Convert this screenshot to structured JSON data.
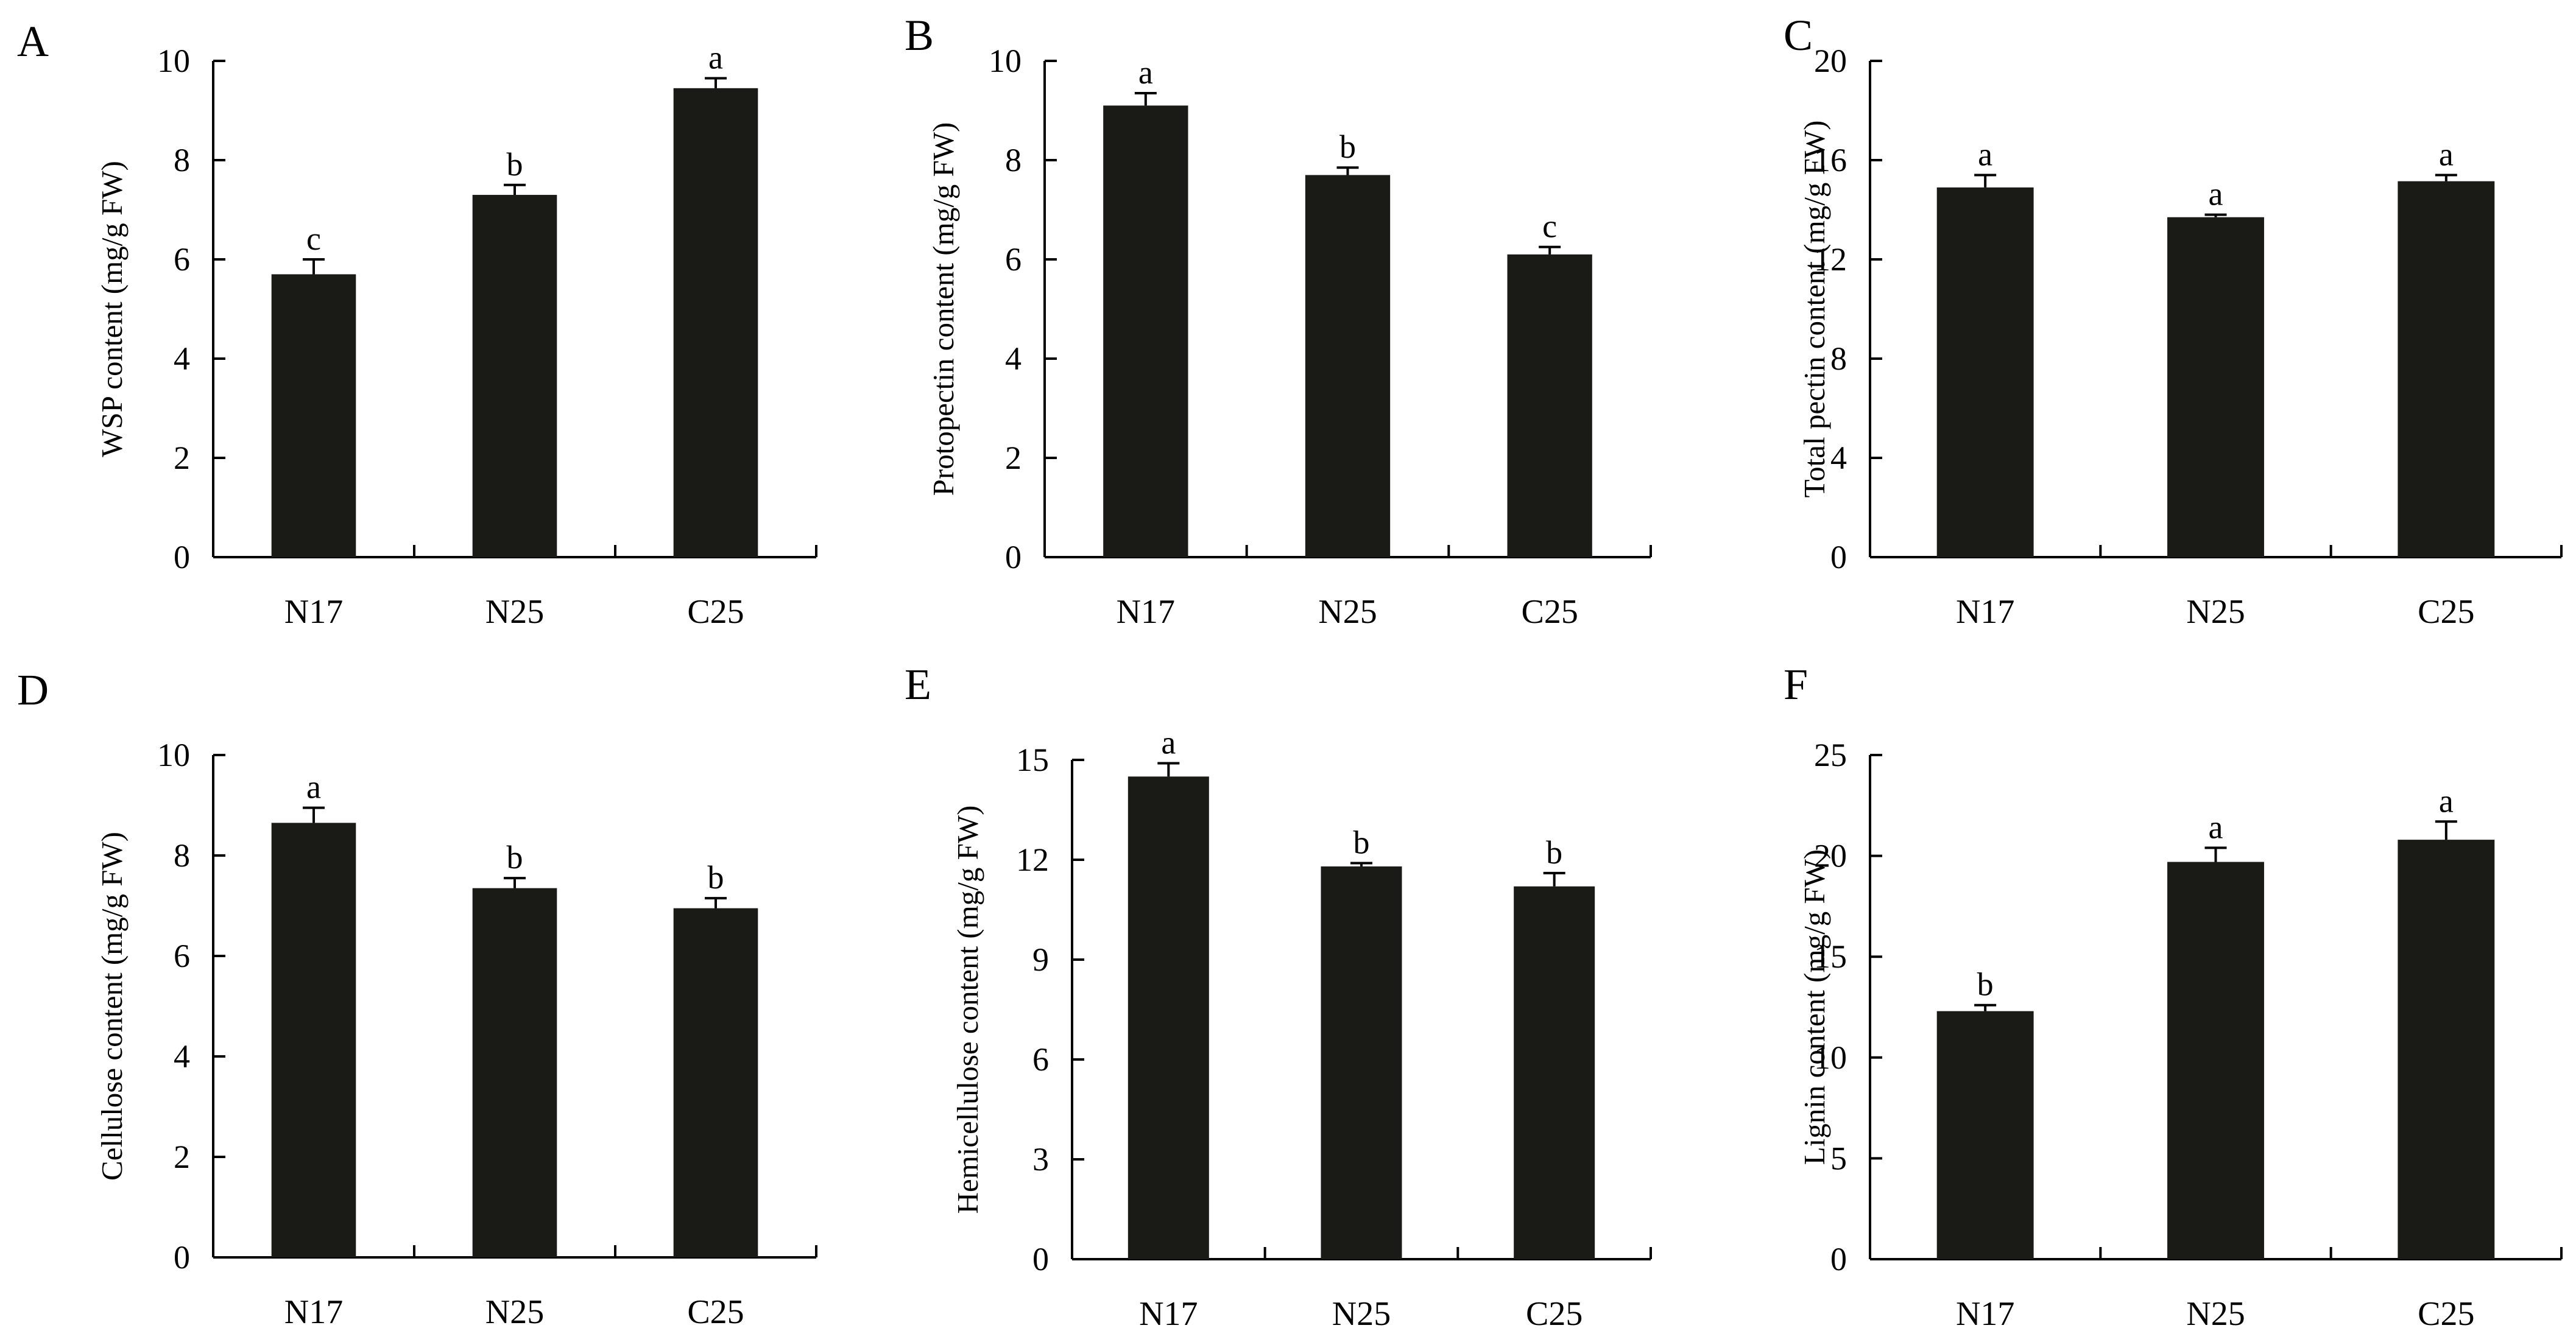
{
  "colors": {
    "bar": "#1a1a16",
    "axis": "#000000",
    "background": "#ffffff"
  },
  "chart_data": [
    {
      "panel": "A",
      "type": "bar",
      "title": "",
      "xlabel": "",
      "ylabel": "WSP content (mg/g FW)",
      "categories": [
        "N17",
        "N25",
        "C25"
      ],
      "values": [
        5.7,
        7.3,
        9.45
      ],
      "errors": [
        0.3,
        0.2,
        0.2
      ],
      "significance": [
        "c",
        "b",
        "a"
      ],
      "ylim": [
        0,
        10
      ],
      "yticks": [
        "0",
        "2",
        "4",
        "6",
        "8",
        "10"
      ],
      "grid": false
    },
    {
      "panel": "B",
      "type": "bar",
      "title": "",
      "xlabel": "",
      "ylabel": "Protopectin content (mg/g FW)",
      "categories": [
        "N17",
        "N25",
        "C25"
      ],
      "values": [
        9.1,
        7.7,
        6.1
      ],
      "errors": [
        0.25,
        0.15,
        0.15
      ],
      "significance": [
        "a",
        "b",
        "c"
      ],
      "ylim": [
        0,
        10
      ],
      "yticks": [
        "0",
        "2",
        "4",
        "6",
        "8",
        "10"
      ],
      "grid": false
    },
    {
      "panel": "C",
      "type": "bar",
      "title": "",
      "xlabel": "",
      "ylabel": "Total pectin content (mg/g FW)",
      "categories": [
        "N17",
        "N25",
        "C25"
      ],
      "values": [
        14.9,
        13.7,
        15.15
      ],
      "errors": [
        0.5,
        0.1,
        0.25
      ],
      "significance": [
        "a",
        "a",
        "a"
      ],
      "ylim": [
        0,
        20
      ],
      "yticks": [
        "0",
        "4",
        "8",
        "12",
        "16",
        "20"
      ],
      "grid": false
    },
    {
      "panel": "D",
      "type": "bar",
      "title": "",
      "xlabel": "",
      "ylabel": "Cellulose content (mg/g FW)",
      "categories": [
        "N17",
        "N25",
        "C25"
      ],
      "values": [
        8.65,
        7.35,
        6.95
      ],
      "errors": [
        0.3,
        0.2,
        0.2
      ],
      "significance": [
        "a",
        "b",
        "b"
      ],
      "ylim": [
        0,
        10
      ],
      "yticks": [
        "0",
        "2",
        "4",
        "6",
        "8",
        "10"
      ],
      "grid": false
    },
    {
      "panel": "E",
      "type": "bar",
      "title": "",
      "xlabel": "",
      "ylabel": "Hemicellulose content (mg/g FW)",
      "categories": [
        "N17",
        "N25",
        "C25"
      ],
      "values": [
        14.5,
        11.8,
        11.2
      ],
      "errors": [
        0.4,
        0.1,
        0.4
      ],
      "significance": [
        "a",
        "b",
        "b"
      ],
      "ylim": [
        0,
        15
      ],
      "yticks": [
        "0",
        "3",
        "6",
        "9",
        "12",
        "15"
      ],
      "grid": false
    },
    {
      "panel": "F",
      "type": "bar",
      "title": "",
      "xlabel": "",
      "ylabel": "Lignin content (mg/g FW)",
      "categories": [
        "N17",
        "N25",
        "C25"
      ],
      "values": [
        12.3,
        19.7,
        20.8
      ],
      "errors": [
        0.3,
        0.7,
        0.9
      ],
      "significance": [
        "b",
        "a",
        "a"
      ],
      "ylim": [
        0,
        25
      ],
      "yticks": [
        "0",
        "5",
        "10",
        "15",
        "20",
        "25"
      ],
      "grid": false
    }
  ]
}
